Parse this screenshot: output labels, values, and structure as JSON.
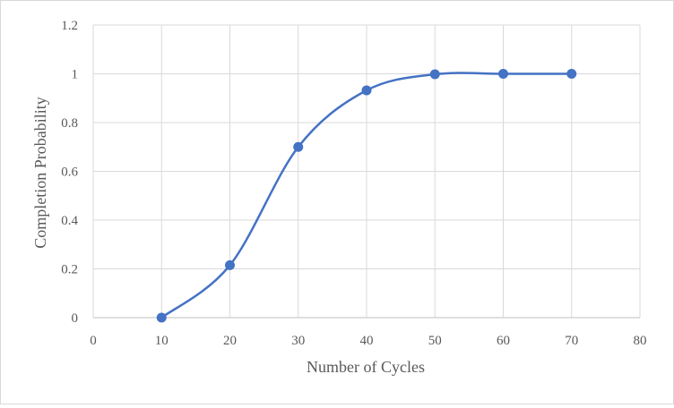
{
  "chart_data": {
    "type": "scatter",
    "title": "",
    "xlabel": "Number of Cycles",
    "ylabel": "Completion Probability",
    "xlim": [
      0,
      80
    ],
    "ylim": [
      0,
      1.2
    ],
    "x_ticks": [
      0,
      10,
      20,
      30,
      40,
      50,
      60,
      70,
      80
    ],
    "y_ticks": [
      0,
      0.2,
      0.4,
      0.6,
      0.8,
      1,
      1.2
    ],
    "x_tick_labels": [
      "0",
      "10",
      "20",
      "30",
      "40",
      "50",
      "60",
      "70",
      "80"
    ],
    "y_tick_labels": [
      "0",
      "0.2",
      "0.4",
      "0.6",
      "0.8",
      "1",
      "1.2"
    ],
    "grid": true,
    "legend": "none",
    "smooth_line": true,
    "series": [
      {
        "x": [
          10,
          20,
          30,
          40,
          50,
          60,
          70
        ],
        "y": [
          0,
          0.215,
          0.7,
          0.932,
          0.998,
          1.0,
          1.0
        ],
        "color": "#4472c4"
      }
    ]
  }
}
